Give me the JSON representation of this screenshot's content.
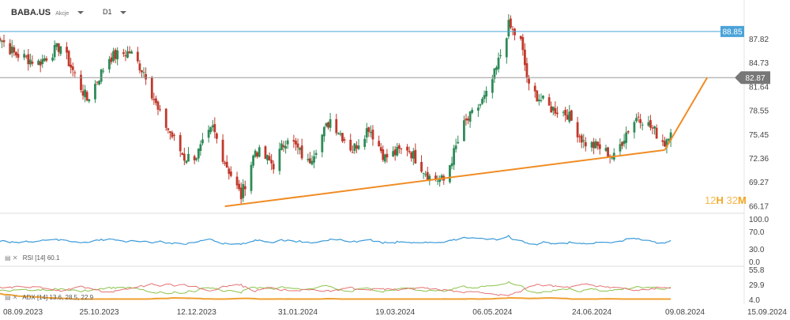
{
  "header": {
    "symbol": "BABA.US",
    "symbol_note": "Akcje",
    "timeframe": "D1"
  },
  "countdown": {
    "hours": "12",
    "h_unit": "H",
    "minutes": "32",
    "m_unit": "M"
  },
  "indicators": {
    "rsi_label": "RSI [14]",
    "rsi_value": "60.1",
    "adx_label": "ADX [14]",
    "adx_values": "13.6, 28.5, 22.9"
  },
  "colors": {
    "up": "#2e8b57",
    "down": "#c0392b",
    "resistance": "#4aa3d8",
    "trend": "#f08c24",
    "rsi": "#3a9ad9",
    "adx": "#f0a030",
    "di_plus": "#8bc34a",
    "di_minus": "#e57373",
    "price_tag": "#777777"
  },
  "chart_data": {
    "type": "candlestick",
    "price_axis": {
      "ticks": [
        87.82,
        84.73,
        81.64,
        78.55,
        75.45,
        72.36,
        69.27,
        66.17
      ],
      "range": [
        65.5,
        91.5
      ]
    },
    "date_ticks": [
      "08.09.2023",
      "25.10.2023",
      "12.12.2023",
      "31.01.2024",
      "19.03.2024",
      "06.05.2024",
      "24.06.2024",
      "09.08.2024",
      "15.09.2024"
    ],
    "date_tick_dates": [
      "2023-09-08",
      "2023-10-25",
      "2023-12-12",
      "2024-01-31",
      "2024-03-19",
      "2024-05-06",
      "2024-06-24",
      "2024-08-09",
      "2024-09-15"
    ],
    "horizontal_lines": [
      {
        "name": "resistance",
        "value": 88.85,
        "label": "88.85"
      },
      {
        "name": "current-price",
        "value": 82.87,
        "label": "82.87"
      }
    ],
    "trendlines": [
      {
        "from": [
          "2023-12-26",
          66.2
        ],
        "to": [
          "2024-07-30",
          73.5
        ]
      },
      {
        "from": [
          "2024-07-30",
          73.5
        ],
        "to": [
          "2024-08-20",
          82.9
        ]
      }
    ],
    "anchors": [
      [
        "2023-09-01",
        89.5
      ],
      [
        "2023-09-13",
        86.0
      ],
      [
        "2023-09-25",
        84.8
      ],
      [
        "2023-10-06",
        87.0
      ],
      [
        "2023-10-19",
        80.0
      ],
      [
        "2023-10-30",
        85.5
      ],
      [
        "2023-11-09",
        86.2
      ],
      [
        "2023-11-17",
        83.3
      ],
      [
        "2023-11-23",
        78.5
      ],
      [
        "2023-12-06",
        72.5
      ],
      [
        "2023-12-12",
        72.8
      ],
      [
        "2023-12-20",
        76.3
      ],
      [
        "2023-12-26",
        72.0
      ],
      [
        "2024-01-03",
        67.5
      ],
      [
        "2024-01-10",
        73.5
      ],
      [
        "2024-01-19",
        71.6
      ],
      [
        "2024-01-26",
        75.3
      ],
      [
        "2024-02-05",
        71.8
      ],
      [
        "2024-02-16",
        77.5
      ],
      [
        "2024-02-27",
        73.5
      ],
      [
        "2024-03-06",
        76.5
      ],
      [
        "2024-03-14",
        72.5
      ],
      [
        "2024-03-25",
        73.8
      ],
      [
        "2024-04-05",
        70.0
      ],
      [
        "2024-04-12",
        69.5
      ],
      [
        "2024-04-22",
        76.7
      ],
      [
        "2024-05-03",
        80.5
      ],
      [
        "2024-05-08",
        84.0
      ],
      [
        "2024-05-14",
        89.6
      ],
      [
        "2024-05-20",
        87.5
      ],
      [
        "2024-05-24",
        81.5
      ],
      [
        "2024-06-03",
        79.0
      ],
      [
        "2024-06-12",
        78.2
      ],
      [
        "2024-06-20",
        74.5
      ],
      [
        "2024-06-28",
        73.8
      ],
      [
        "2024-07-05",
        72.5
      ],
      [
        "2024-07-11",
        75.8
      ],
      [
        "2024-07-17",
        78.0
      ],
      [
        "2024-07-24",
        76.2
      ],
      [
        "2024-07-30",
        74.4
      ],
      [
        "2024-08-06",
        79.0
      ],
      [
        "2024-08-12",
        80.2
      ],
      [
        "2024-08-16",
        83.8
      ],
      [
        "2024-08-22",
        82.9
      ]
    ],
    "rsi": {
      "name": "RSI [14]",
      "ticks": [
        100.0,
        70.0,
        30.0,
        0.0
      ],
      "range": [
        0,
        100
      ],
      "last": 60.1
    },
    "adx": {
      "name": "ADX [14]",
      "ticks": [
        55.8,
        29.9,
        4.0
      ],
      "range": [
        4.0,
        55.8
      ],
      "last": [
        13.6,
        28.5,
        22.9
      ]
    }
  }
}
